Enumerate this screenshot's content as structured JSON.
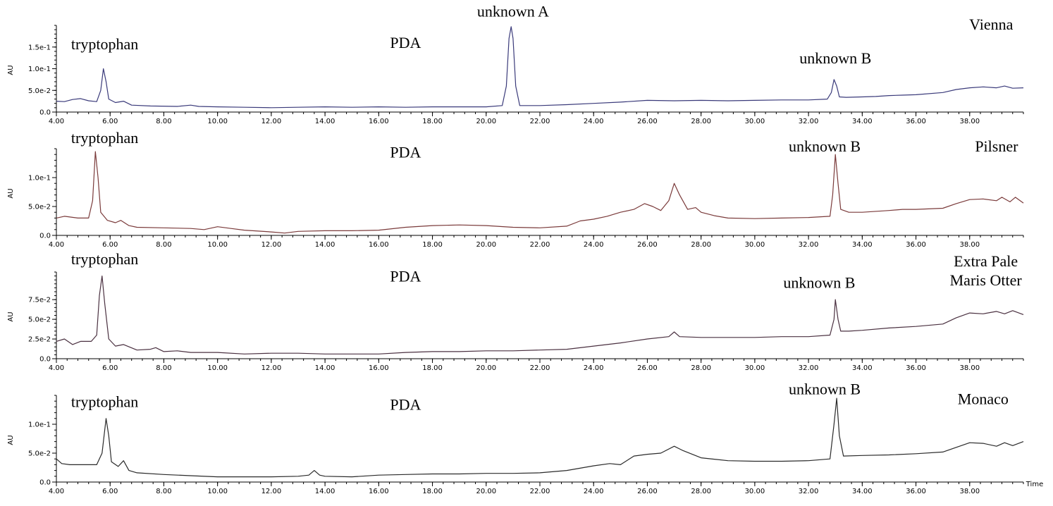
{
  "chart_data": [
    {
      "type": "line",
      "sample": "Vienna",
      "detector": "PDA",
      "ylabel": "AU",
      "xlim": [
        4.0,
        40.0
      ],
      "ylim": [
        0,
        0.2
      ],
      "x_ticks": [
        "4.00",
        "6.00",
        "8.00",
        "10.00",
        "12.00",
        "14.00",
        "16.00",
        "18.00",
        "20.00",
        "22.00",
        "24.00",
        "26.00",
        "28.00",
        "30.00",
        "32.00",
        "34.00",
        "36.00",
        "38.00"
      ],
      "y_ticks": [
        {
          "v": 0,
          "label": "0.0"
        },
        {
          "v": 0.05,
          "label": "5.0e-2"
        },
        {
          "v": 0.1,
          "label": "1.0e-1"
        },
        {
          "v": 0.15,
          "label": "1.5e-1"
        }
      ],
      "color": "#3a3a7a",
      "annotations": [
        {
          "text": "tryptophan",
          "x": 5.8,
          "y": 0.145
        },
        {
          "text": "PDA",
          "x": 17.0,
          "y": 0.148
        },
        {
          "text": "unknown A",
          "x": 21.0,
          "y": 0.22
        },
        {
          "text": "unknown B",
          "x": 33.0,
          "y": 0.112
        },
        {
          "text": "Vienna",
          "x": 38.8,
          "y": 0.19
        }
      ],
      "points": [
        [
          4.0,
          0.025
        ],
        [
          4.3,
          0.024
        ],
        [
          4.6,
          0.029
        ],
        [
          4.9,
          0.031
        ],
        [
          5.2,
          0.026
        ],
        [
          5.5,
          0.024
        ],
        [
          5.65,
          0.05
        ],
        [
          5.75,
          0.1
        ],
        [
          5.85,
          0.07
        ],
        [
          5.95,
          0.03
        ],
        [
          6.2,
          0.022
        ],
        [
          6.5,
          0.025
        ],
        [
          6.8,
          0.016
        ],
        [
          7.5,
          0.014
        ],
        [
          8.5,
          0.013
        ],
        [
          9.0,
          0.016
        ],
        [
          9.3,
          0.013
        ],
        [
          10.0,
          0.012
        ],
        [
          11.0,
          0.011
        ],
        [
          12.0,
          0.01
        ],
        [
          13.0,
          0.011
        ],
        [
          14.0,
          0.012
        ],
        [
          15.0,
          0.011
        ],
        [
          16.0,
          0.012
        ],
        [
          17.0,
          0.011
        ],
        [
          18.0,
          0.012
        ],
        [
          19.0,
          0.012
        ],
        [
          20.0,
          0.012
        ],
        [
          20.6,
          0.015
        ],
        [
          20.75,
          0.06
        ],
        [
          20.85,
          0.17
        ],
        [
          20.93,
          0.197
        ],
        [
          21.0,
          0.17
        ],
        [
          21.1,
          0.06
        ],
        [
          21.25,
          0.015
        ],
        [
          22.0,
          0.015
        ],
        [
          23.0,
          0.017
        ],
        [
          24.0,
          0.02
        ],
        [
          25.0,
          0.023
        ],
        [
          26.0,
          0.027
        ],
        [
          27.0,
          0.026
        ],
        [
          28.0,
          0.027
        ],
        [
          29.0,
          0.026
        ],
        [
          30.0,
          0.027
        ],
        [
          31.0,
          0.028
        ],
        [
          32.0,
          0.028
        ],
        [
          32.7,
          0.03
        ],
        [
          32.85,
          0.045
        ],
        [
          32.95,
          0.075
        ],
        [
          33.05,
          0.06
        ],
        [
          33.15,
          0.035
        ],
        [
          33.4,
          0.034
        ],
        [
          34.0,
          0.035
        ],
        [
          34.5,
          0.036
        ],
        [
          35.0,
          0.038
        ],
        [
          35.5,
          0.039
        ],
        [
          36.0,
          0.04
        ],
        [
          37.0,
          0.045
        ],
        [
          37.5,
          0.052
        ],
        [
          38.0,
          0.056
        ],
        [
          38.5,
          0.058
        ],
        [
          39.0,
          0.056
        ],
        [
          39.3,
          0.06
        ],
        [
          39.6,
          0.055
        ],
        [
          40.0,
          0.056
        ]
      ]
    },
    {
      "type": "line",
      "sample": "Pilsner",
      "detector": "PDA",
      "ylabel": "AU",
      "xlim": [
        4.0,
        40.0
      ],
      "ylim": [
        0,
        0.15
      ],
      "x_ticks": [
        "4.00",
        "6.00",
        "8.00",
        "10.00",
        "12.00",
        "14.00",
        "16.00",
        "18.00",
        "20.00",
        "22.00",
        "24.00",
        "26.00",
        "28.00",
        "30.00",
        "32.00",
        "34.00",
        "36.00",
        "38.00"
      ],
      "y_ticks": [
        {
          "v": 0,
          "label": "0.0"
        },
        {
          "v": 0.05,
          "label": "5.0e-2"
        },
        {
          "v": 0.1,
          "label": "1.0e-1"
        }
      ],
      "color": "#7a3a3a",
      "annotations": [
        {
          "text": "tryptophan",
          "x": 5.8,
          "y": 0.16
        },
        {
          "text": "PDA",
          "x": 17.0,
          "y": 0.135
        },
        {
          "text": "unknown B",
          "x": 32.6,
          "y": 0.145
        },
        {
          "text": "Pilsner",
          "x": 39.0,
          "y": 0.145
        }
      ],
      "points": [
        [
          4.0,
          0.03
        ],
        [
          4.3,
          0.033
        ],
        [
          4.8,
          0.03
        ],
        [
          5.2,
          0.03
        ],
        [
          5.35,
          0.06
        ],
        [
          5.45,
          0.145
        ],
        [
          5.55,
          0.1
        ],
        [
          5.65,
          0.04
        ],
        [
          5.9,
          0.026
        ],
        [
          6.2,
          0.022
        ],
        [
          6.4,
          0.026
        ],
        [
          6.7,
          0.017
        ],
        [
          7.0,
          0.014
        ],
        [
          8.0,
          0.013
        ],
        [
          9.0,
          0.012
        ],
        [
          9.5,
          0.01
        ],
        [
          10.0,
          0.015
        ],
        [
          10.5,
          0.012
        ],
        [
          11.0,
          0.009
        ],
        [
          12.0,
          0.006
        ],
        [
          12.5,
          0.004
        ],
        [
          13.0,
          0.007
        ],
        [
          14.0,
          0.008
        ],
        [
          15.0,
          0.008
        ],
        [
          16.0,
          0.009
        ],
        [
          17.0,
          0.014
        ],
        [
          18.0,
          0.017
        ],
        [
          19.0,
          0.018
        ],
        [
          20.0,
          0.017
        ],
        [
          21.0,
          0.014
        ],
        [
          22.0,
          0.013
        ],
        [
          23.0,
          0.016
        ],
        [
          23.5,
          0.025
        ],
        [
          24.0,
          0.028
        ],
        [
          24.5,
          0.033
        ],
        [
          25.0,
          0.04
        ],
        [
          25.5,
          0.045
        ],
        [
          25.9,
          0.055
        ],
        [
          26.2,
          0.05
        ],
        [
          26.5,
          0.043
        ],
        [
          26.8,
          0.06
        ],
        [
          27.0,
          0.09
        ],
        [
          27.2,
          0.07
        ],
        [
          27.5,
          0.045
        ],
        [
          27.8,
          0.048
        ],
        [
          28.0,
          0.04
        ],
        [
          28.5,
          0.034
        ],
        [
          29.0,
          0.03
        ],
        [
          30.0,
          0.029
        ],
        [
          31.0,
          0.03
        ],
        [
          32.0,
          0.031
        ],
        [
          32.8,
          0.033
        ],
        [
          32.9,
          0.07
        ],
        [
          33.0,
          0.14
        ],
        [
          33.1,
          0.09
        ],
        [
          33.2,
          0.045
        ],
        [
          33.5,
          0.04
        ],
        [
          34.0,
          0.04
        ],
        [
          35.0,
          0.043
        ],
        [
          35.5,
          0.045
        ],
        [
          36.0,
          0.045
        ],
        [
          37.0,
          0.047
        ],
        [
          37.5,
          0.055
        ],
        [
          38.0,
          0.062
        ],
        [
          38.5,
          0.063
        ],
        [
          39.0,
          0.06
        ],
        [
          39.2,
          0.066
        ],
        [
          39.5,
          0.058
        ],
        [
          39.7,
          0.066
        ],
        [
          40.0,
          0.056
        ]
      ]
    },
    {
      "type": "line",
      "sample": "Extra Pale Maris Otter",
      "detector": "PDA",
      "ylabel": "AU",
      "xlim": [
        4.0,
        40.0
      ],
      "ylim": [
        0,
        0.11
      ],
      "x_ticks": [
        "4.00",
        "6.00",
        "8.00",
        "10.00",
        "12.00",
        "14.00",
        "16.00",
        "18.00",
        "20.00",
        "22.00",
        "24.00",
        "26.00",
        "28.00",
        "30.00",
        "32.00",
        "34.00",
        "36.00",
        "38.00"
      ],
      "y_ticks": [
        {
          "v": 0,
          "label": "0.0"
        },
        {
          "v": 0.025,
          "label": "2.5e-2"
        },
        {
          "v": 0.05,
          "label": "5.0e-2"
        },
        {
          "v": 0.075,
          "label": "7.5e-2"
        }
      ],
      "color": "#4a3040",
      "annotations": [
        {
          "text": "tryptophan",
          "x": 5.8,
          "y": 0.12
        },
        {
          "text": "PDA",
          "x": 17.0,
          "y": 0.098
        },
        {
          "text": "unknown B",
          "x": 32.4,
          "y": 0.09
        },
        {
          "text": "Extra Pale",
          "x": 38.6,
          "y": 0.117
        },
        {
          "text": "Maris Otter",
          "x": 38.6,
          "y": 0.093
        }
      ],
      "points": [
        [
          4.0,
          0.022
        ],
        [
          4.3,
          0.025
        ],
        [
          4.6,
          0.018
        ],
        [
          4.9,
          0.022
        ],
        [
          5.3,
          0.022
        ],
        [
          5.5,
          0.03
        ],
        [
          5.6,
          0.08
        ],
        [
          5.7,
          0.105
        ],
        [
          5.8,
          0.07
        ],
        [
          5.95,
          0.025
        ],
        [
          6.2,
          0.016
        ],
        [
          6.5,
          0.018
        ],
        [
          7.0,
          0.011
        ],
        [
          7.5,
          0.012
        ],
        [
          7.7,
          0.014
        ],
        [
          8.0,
          0.009
        ],
        [
          8.5,
          0.01
        ],
        [
          9.0,
          0.008
        ],
        [
          10.0,
          0.008
        ],
        [
          11.0,
          0.006
        ],
        [
          12.0,
          0.007
        ],
        [
          13.0,
          0.007
        ],
        [
          14.0,
          0.006
        ],
        [
          15.0,
          0.006
        ],
        [
          16.0,
          0.006
        ],
        [
          17.0,
          0.008
        ],
        [
          18.0,
          0.009
        ],
        [
          19.0,
          0.009
        ],
        [
          20.0,
          0.01
        ],
        [
          21.0,
          0.01
        ],
        [
          22.0,
          0.011
        ],
        [
          23.0,
          0.012
        ],
        [
          24.0,
          0.016
        ],
        [
          25.0,
          0.02
        ],
        [
          26.0,
          0.025
        ],
        [
          26.8,
          0.028
        ],
        [
          27.0,
          0.034
        ],
        [
          27.2,
          0.028
        ],
        [
          28.0,
          0.027
        ],
        [
          29.0,
          0.027
        ],
        [
          30.0,
          0.027
        ],
        [
          31.0,
          0.028
        ],
        [
          32.0,
          0.028
        ],
        [
          32.8,
          0.03
        ],
        [
          32.95,
          0.05
        ],
        [
          33.0,
          0.075
        ],
        [
          33.1,
          0.05
        ],
        [
          33.2,
          0.035
        ],
        [
          33.5,
          0.035
        ],
        [
          34.0,
          0.036
        ],
        [
          35.0,
          0.039
        ],
        [
          36.0,
          0.041
        ],
        [
          37.0,
          0.044
        ],
        [
          37.5,
          0.052
        ],
        [
          38.0,
          0.058
        ],
        [
          38.5,
          0.057
        ],
        [
          39.0,
          0.06
        ],
        [
          39.3,
          0.057
        ],
        [
          39.6,
          0.061
        ],
        [
          40.0,
          0.056
        ]
      ]
    },
    {
      "type": "line",
      "sample": "Monaco",
      "detector": "PDA",
      "ylabel": "AU",
      "xlim": [
        4.0,
        40.0
      ],
      "ylim": [
        0,
        0.15
      ],
      "x_ticks": [
        "4.00",
        "6.00",
        "8.00",
        "10.00",
        "12.00",
        "14.00",
        "16.00",
        "18.00",
        "20.00",
        "22.00",
        "24.00",
        "26.00",
        "28.00",
        "30.00",
        "32.00",
        "34.00",
        "36.00",
        "38.00"
      ],
      "y_ticks": [
        {
          "v": 0,
          "label": "0.0"
        },
        {
          "v": 0.05,
          "label": "5.0e-2"
        },
        {
          "v": 0.1,
          "label": "1.0e-1"
        }
      ],
      "color": "#2a2a2a",
      "annotations": [
        {
          "text": "tryptophan",
          "x": 5.8,
          "y": 0.13
        },
        {
          "text": "PDA",
          "x": 17.0,
          "y": 0.125
        },
        {
          "text": "unknown B",
          "x": 32.6,
          "y": 0.152
        },
        {
          "text": "Monaco",
          "x": 38.5,
          "y": 0.135
        }
      ],
      "points": [
        [
          4.0,
          0.04
        ],
        [
          4.2,
          0.032
        ],
        [
          4.5,
          0.03
        ],
        [
          5.0,
          0.03
        ],
        [
          5.5,
          0.03
        ],
        [
          5.7,
          0.05
        ],
        [
          5.85,
          0.11
        ],
        [
          5.95,
          0.08
        ],
        [
          6.05,
          0.035
        ],
        [
          6.3,
          0.027
        ],
        [
          6.5,
          0.037
        ],
        [
          6.7,
          0.02
        ],
        [
          7.0,
          0.016
        ],
        [
          8.0,
          0.013
        ],
        [
          9.0,
          0.011
        ],
        [
          10.0,
          0.009
        ],
        [
          11.0,
          0.009
        ],
        [
          12.0,
          0.009
        ],
        [
          13.0,
          0.01
        ],
        [
          13.4,
          0.012
        ],
        [
          13.6,
          0.02
        ],
        [
          13.8,
          0.012
        ],
        [
          14.0,
          0.01
        ],
        [
          15.0,
          0.009
        ],
        [
          16.0,
          0.012
        ],
        [
          17.0,
          0.013
        ],
        [
          18.0,
          0.014
        ],
        [
          19.0,
          0.014
        ],
        [
          20.0,
          0.015
        ],
        [
          21.0,
          0.015
        ],
        [
          22.0,
          0.016
        ],
        [
          23.0,
          0.02
        ],
        [
          24.0,
          0.028
        ],
        [
          24.6,
          0.032
        ],
        [
          25.0,
          0.03
        ],
        [
          25.5,
          0.045
        ],
        [
          26.0,
          0.048
        ],
        [
          26.5,
          0.05
        ],
        [
          27.0,
          0.062
        ],
        [
          27.3,
          0.055
        ],
        [
          28.0,
          0.042
        ],
        [
          29.0,
          0.037
        ],
        [
          30.0,
          0.036
        ],
        [
          31.0,
          0.036
        ],
        [
          32.0,
          0.037
        ],
        [
          32.8,
          0.04
        ],
        [
          32.95,
          0.1
        ],
        [
          33.05,
          0.145
        ],
        [
          33.15,
          0.08
        ],
        [
          33.3,
          0.045
        ],
        [
          34.0,
          0.046
        ],
        [
          35.0,
          0.047
        ],
        [
          36.0,
          0.049
        ],
        [
          37.0,
          0.052
        ],
        [
          37.5,
          0.06
        ],
        [
          38.0,
          0.068
        ],
        [
          38.5,
          0.067
        ],
        [
          39.0,
          0.062
        ],
        [
          39.3,
          0.068
        ],
        [
          39.6,
          0.063
        ],
        [
          40.0,
          0.07
        ]
      ]
    }
  ],
  "x_axis_title": "Time"
}
